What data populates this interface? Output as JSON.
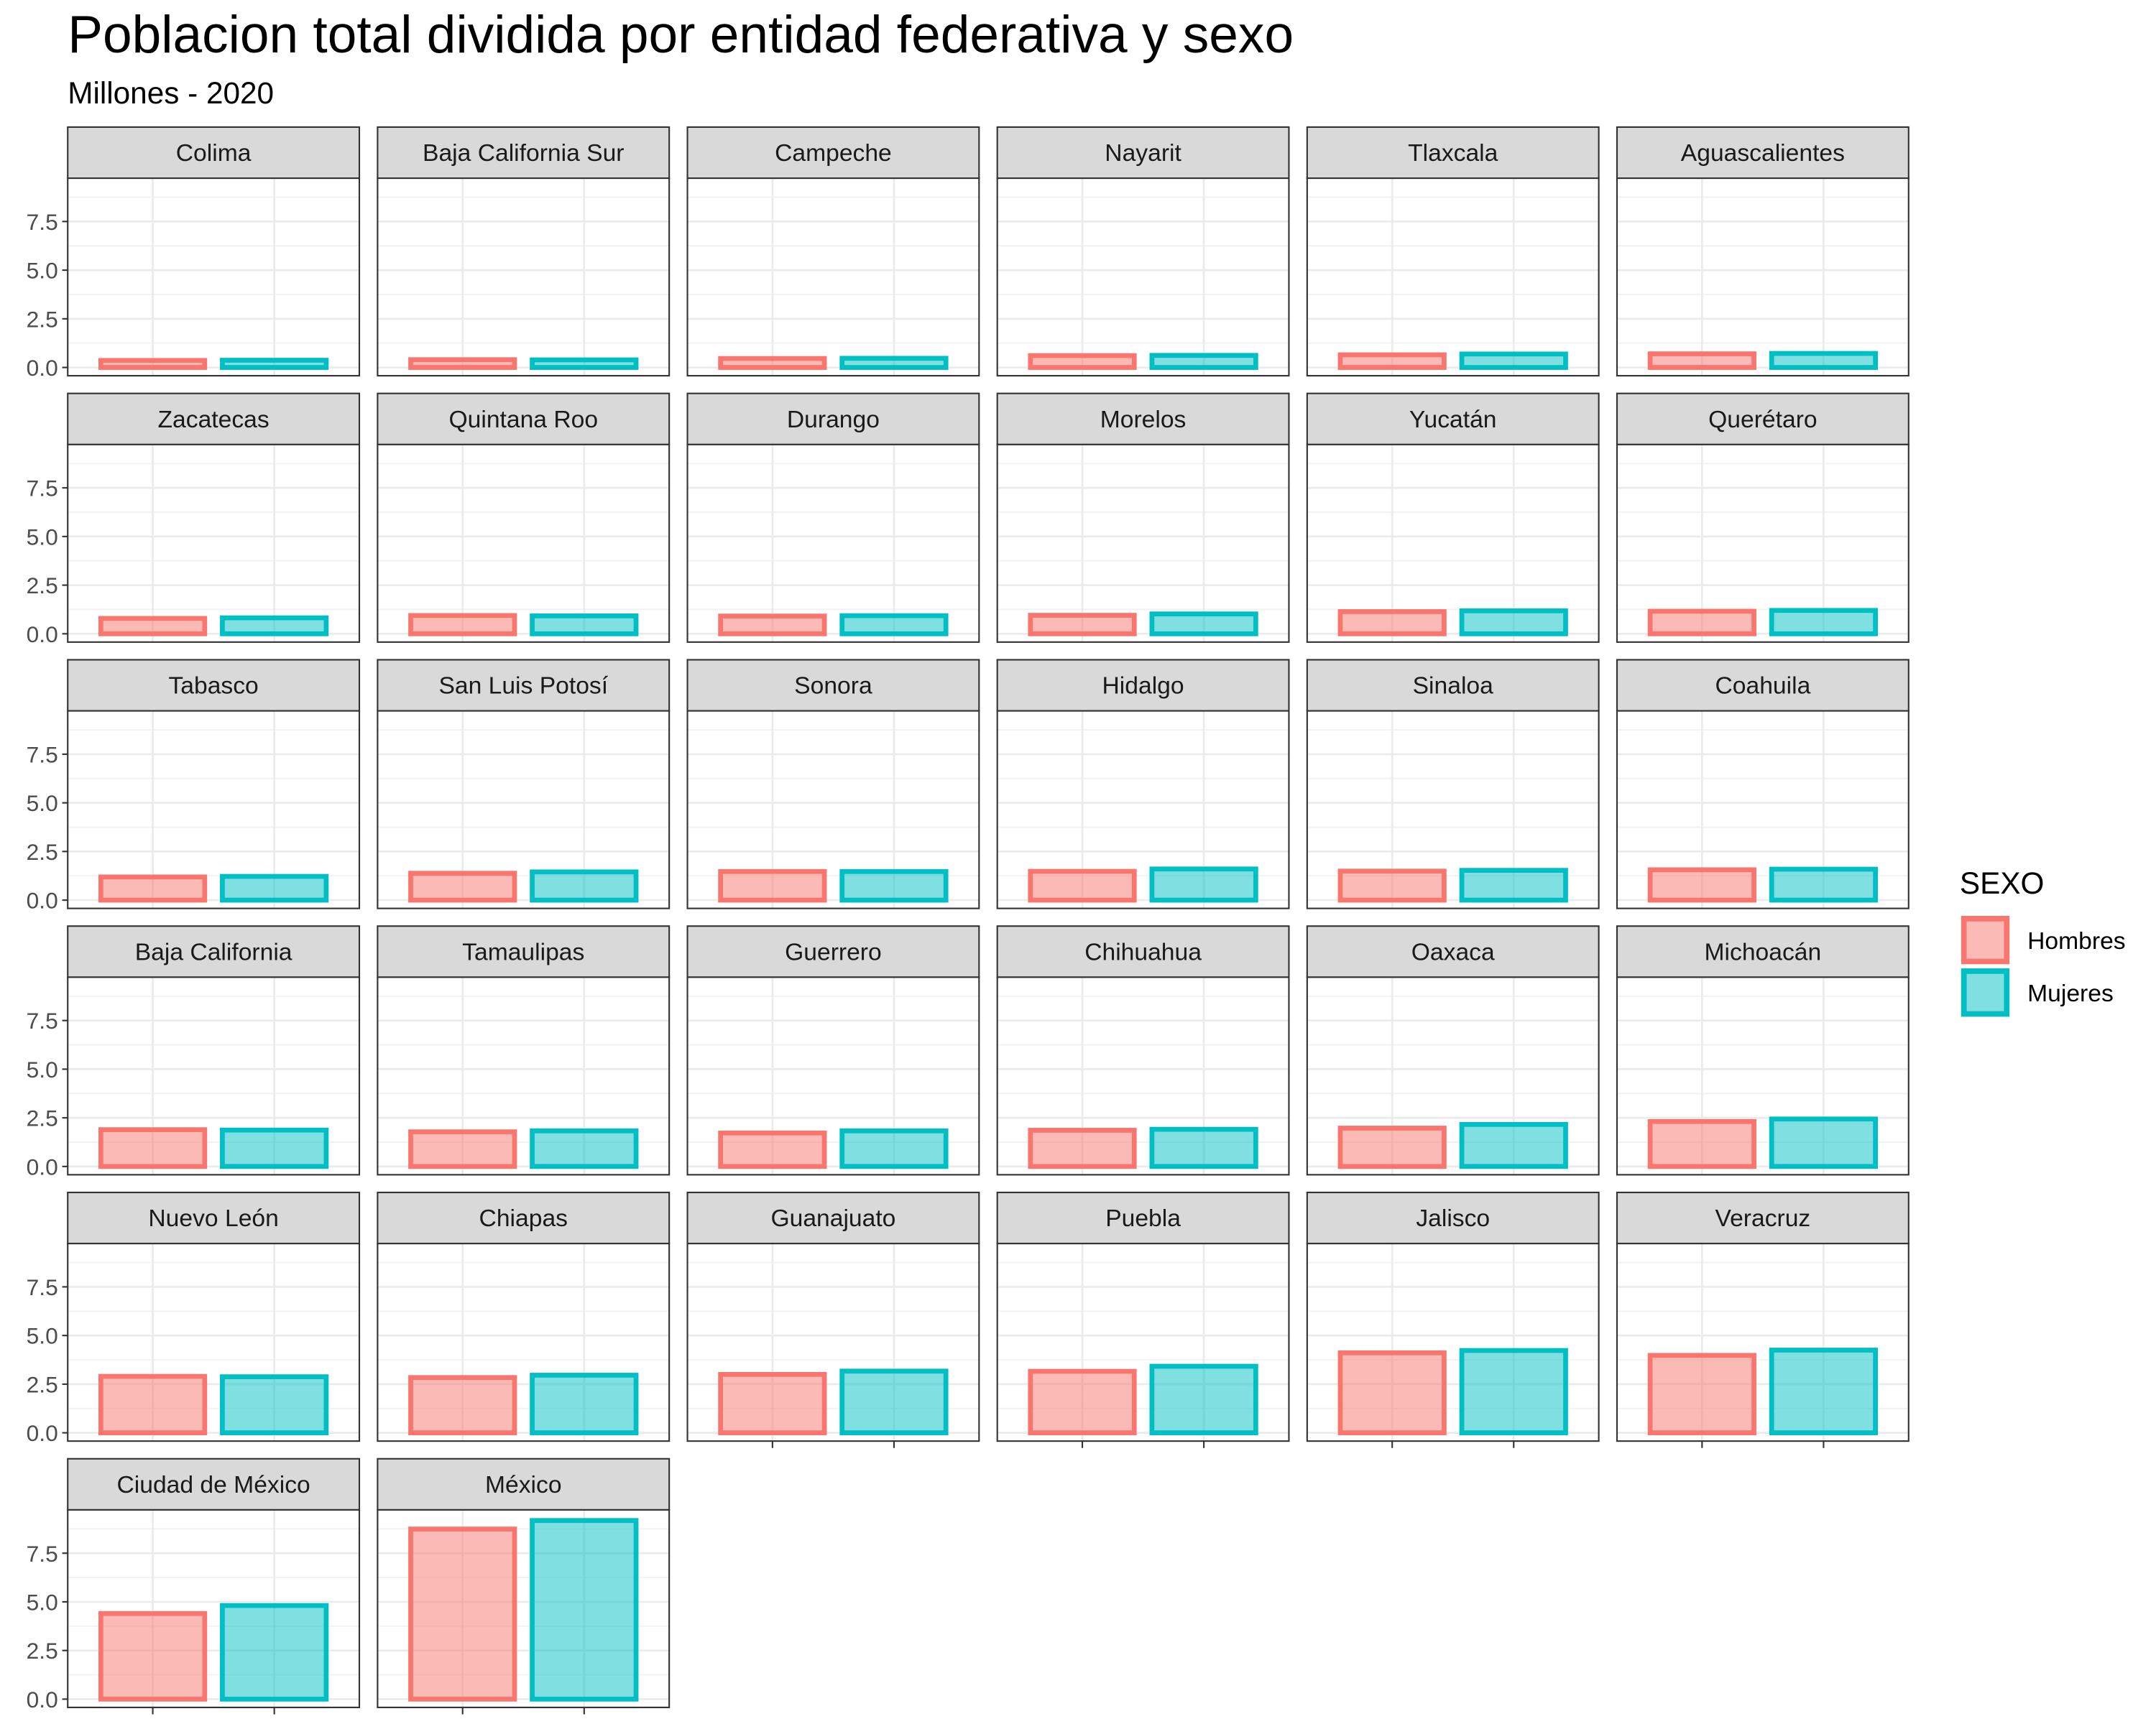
{
  "chart_data": {
    "type": "bar",
    "title": "Poblacion total dividida por entidad federativa y sexo",
    "subtitle": "Millones - 2020",
    "facet_by": "entidad federativa",
    "categories": [
      "Hombres",
      "Mujeres"
    ],
    "ylim": [
      0,
      9.3
    ],
    "yticks": [
      "0.0",
      "2.5",
      "5.0",
      "7.5"
    ],
    "ytick_values": [
      0,
      2.5,
      5.0,
      7.5
    ],
    "grid": true,
    "legend": {
      "title": "SEXO",
      "position": "right",
      "entries": [
        {
          "label": "Hombres",
          "fill": "#F8766D",
          "stroke": "#F8766D"
        },
        {
          "label": "Mujeres",
          "fill": "#00BFC4",
          "stroke": "#00BFC4"
        }
      ]
    },
    "facets": [
      {
        "name": "Colima",
        "values": [
          0.36,
          0.37
        ]
      },
      {
        "name": "Baja California Sur",
        "values": [
          0.4,
          0.39
        ]
      },
      {
        "name": "Campeche",
        "values": [
          0.46,
          0.47
        ]
      },
      {
        "name": "Nayarit",
        "values": [
          0.61,
          0.62
        ]
      },
      {
        "name": "Tlaxcala",
        "values": [
          0.65,
          0.69
        ]
      },
      {
        "name": "Aguascalientes",
        "values": [
          0.7,
          0.72
        ]
      },
      {
        "name": "Zacatecas",
        "values": [
          0.79,
          0.82
        ]
      },
      {
        "name": "Quintana Roo",
        "values": [
          0.94,
          0.92
        ]
      },
      {
        "name": "Durango",
        "values": [
          0.91,
          0.93
        ]
      },
      {
        "name": "Morelos",
        "values": [
          0.95,
          1.02
        ]
      },
      {
        "name": "Yucatán",
        "values": [
          1.14,
          1.18
        ]
      },
      {
        "name": "Querétaro",
        "values": [
          1.16,
          1.2
        ]
      },
      {
        "name": "Tabasco",
        "values": [
          1.19,
          1.22
        ]
      },
      {
        "name": "San Luis Potosí",
        "values": [
          1.38,
          1.45
        ]
      },
      {
        "name": "Sonora",
        "values": [
          1.47,
          1.47
        ]
      },
      {
        "name": "Hidalgo",
        "values": [
          1.48,
          1.6
        ]
      },
      {
        "name": "Sinaloa",
        "values": [
          1.49,
          1.53
        ]
      },
      {
        "name": "Coahuila",
        "values": [
          1.56,
          1.59
        ]
      },
      {
        "name": "Baja California",
        "values": [
          1.89,
          1.87
        ]
      },
      {
        "name": "Tamaulipas",
        "values": [
          1.78,
          1.83
        ]
      },
      {
        "name": "Guerrero",
        "values": [
          1.72,
          1.83
        ]
      },
      {
        "name": "Chihuahua",
        "values": [
          1.86,
          1.91
        ]
      },
      {
        "name": "Oaxaca",
        "values": [
          1.97,
          2.16
        ]
      },
      {
        "name": "Michoacán",
        "values": [
          2.31,
          2.44
        ]
      },
      {
        "name": "Nuevo León",
        "values": [
          2.9,
          2.88
        ]
      },
      {
        "name": "Chiapas",
        "values": [
          2.84,
          2.96
        ]
      },
      {
        "name": "Guanajuato",
        "values": [
          3.0,
          3.17
        ]
      },
      {
        "name": "Puebla",
        "values": [
          3.16,
          3.42
        ]
      },
      {
        "name": "Jalisco",
        "values": [
          4.11,
          4.23
        ]
      },
      {
        "name": "Veracruz",
        "values": [
          3.98,
          4.25
        ]
      },
      {
        "name": "Ciudad de México",
        "values": [
          4.4,
          4.81
        ]
      },
      {
        "name": "México",
        "values": [
          8.74,
          9.18
        ]
      }
    ]
  }
}
